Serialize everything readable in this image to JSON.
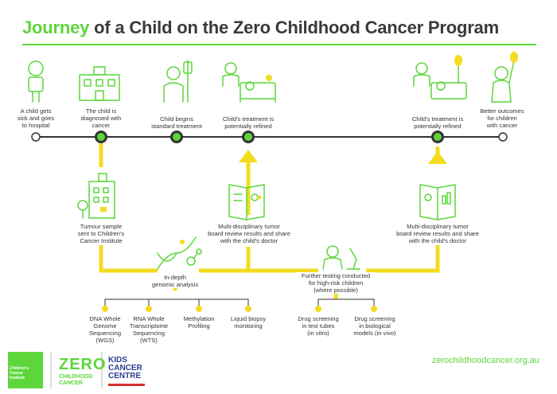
{
  "title": {
    "accent": "Journey",
    "rest": " of a Child on the Zero Childhood Cancer Program"
  },
  "stages": {
    "s1": "A child gets\nsick and goes\nto hospital",
    "s2": "The child is\ndiagnosed with\ncancer",
    "s3": "Child begins\nstandard treatment",
    "s4": "Child's treatment is\npotentially refined",
    "s5": "Child's treatment is\npotentially refined",
    "s6": "Better outcomes\nfor children\nwith cancer"
  },
  "steps": {
    "tumour": "Tumour sample\nsent to Children's\nCancer Institute",
    "board1": "Multi-disciplinary tumor\nboard review results and share\nwith the child's doctor",
    "board2": "Multi-disciplinary tumor\nboard review results and share\nwith the child's doctor",
    "genomic": "In-depth\ngenomic analysis",
    "further": "Further testing conducted\nfor high-risk children\n(where possible)"
  },
  "analyses": {
    "wgs": "DNA Whole\nGenome\nSequencing (WGS)",
    "wts": "RNA Whole\nTranscriptome\nSequencing (WTS)",
    "meth": "Methylation\nProfiling",
    "liquid": "Liquid biopsy\nmonitoring",
    "vitro": "Drug screening\nin test tubes\n(in vitro)",
    "vivo": "Drug screening\nin biological\nmodels (in vivo)"
  },
  "footer": {
    "url": "zerochildhoodcancer.org.au",
    "zero": "ZERO",
    "zero_sub": "CHILDHOOD\nCANCER",
    "kids": "KIDS\nCANCER\nCENTRE",
    "cci": "Children's\nCancer\nInstitute"
  },
  "colors": {
    "green": "#5cd63a",
    "yellow": "#f2dc1e",
    "line": "#333333",
    "text": "#333333"
  }
}
